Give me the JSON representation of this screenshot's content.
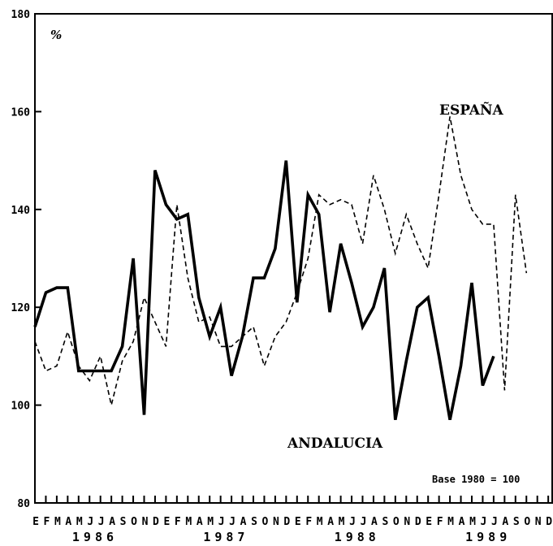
{
  "chart_data": {
    "type": "line",
    "unit_label": "%",
    "note": "Base 1980 = 100",
    "ylim": [
      80,
      180
    ],
    "yticks": [
      "80",
      "100",
      "120",
      "140",
      "160",
      "180"
    ],
    "month_labels": [
      "E",
      "F",
      "M",
      "A",
      "M",
      "J",
      "J",
      "A",
      "S",
      "O",
      "N",
      "D",
      "E",
      "F",
      "M",
      "A",
      "M",
      "J",
      "J",
      "A",
      "S",
      "O",
      "N",
      "D",
      "E",
      "F",
      "M",
      "A",
      "M",
      "J",
      "J",
      "A",
      "S",
      "O",
      "N",
      "D",
      "E",
      "F",
      "M",
      "A",
      "M",
      "J",
      "J",
      "A",
      "S",
      "O",
      "N",
      "D"
    ],
    "years": [
      "1986",
      "1987",
      "1988",
      "1989"
    ],
    "series": [
      {
        "name": "ESPAÑA",
        "style": "dashed",
        "color": "#000000",
        "values": [
          113,
          107,
          108,
          115,
          108,
          105,
          110,
          100,
          109,
          113,
          122,
          117,
          112,
          141,
          126,
          117,
          118,
          112,
          112,
          114,
          116,
          108,
          114,
          117,
          123,
          130,
          143,
          141,
          142,
          141,
          133,
          147,
          140,
          131,
          139,
          133,
          128,
          143,
          159,
          147,
          140,
          137,
          137,
          103,
          143,
          127
        ]
      },
      {
        "name": "ANDALUCIA",
        "style": "solid",
        "color": "#000000",
        "values": [
          116,
          123,
          124,
          124,
          107,
          107,
          107,
          107,
          112,
          130,
          98,
          148,
          141,
          138,
          139,
          122,
          114,
          120,
          106,
          114,
          126,
          126,
          132,
          150,
          121,
          143,
          139,
          119,
          133,
          125,
          116,
          120,
          128,
          97,
          109,
          120,
          122,
          110,
          97,
          108,
          125,
          104,
          110
        ]
      }
    ],
    "grid": false
  }
}
